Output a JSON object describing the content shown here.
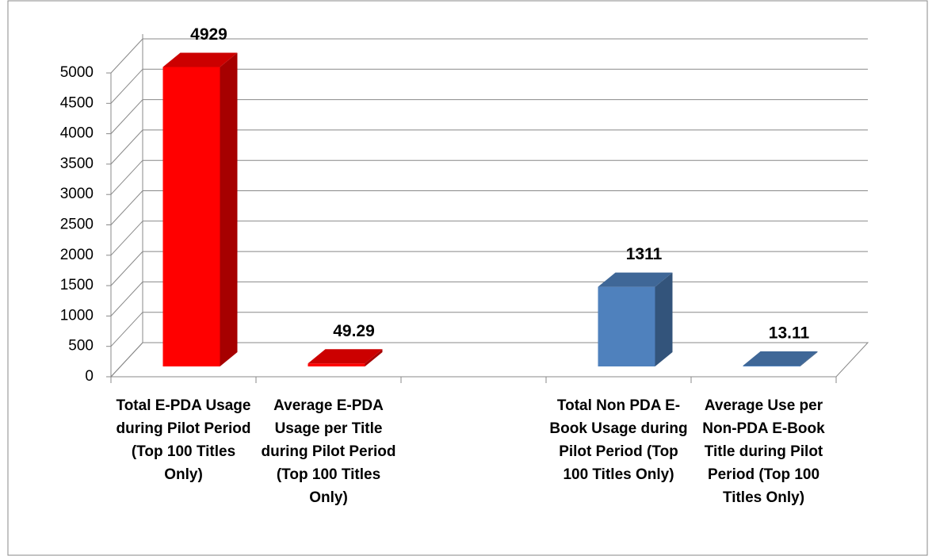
{
  "chart_data": {
    "type": "bar3d",
    "categories": [
      "Total E-PDA Usage during Pilot Period (Top 100 Titles Only)",
      "Average E-PDA Usage per Title during Pilot Period (Top 100 Titles Only)",
      null,
      "Total Non PDA E-Book Usage during Pilot Period (Top 100 Titles Only)",
      "Average Use per Non-PDA E-Book Title during Pilot Period (Top 100 Titles Only)"
    ],
    "values": [
      4929,
      49.29,
      null,
      1311,
      13.11
    ],
    "colors": [
      "#ff0000",
      "#ff0000",
      null,
      "#4f81bd",
      "#4f81bd"
    ],
    "ylim": [
      0,
      5000
    ],
    "yticks": [
      0,
      500,
      1000,
      1500,
      2000,
      2500,
      3000,
      3500,
      4000,
      4500,
      5000
    ],
    "grid": true
  }
}
